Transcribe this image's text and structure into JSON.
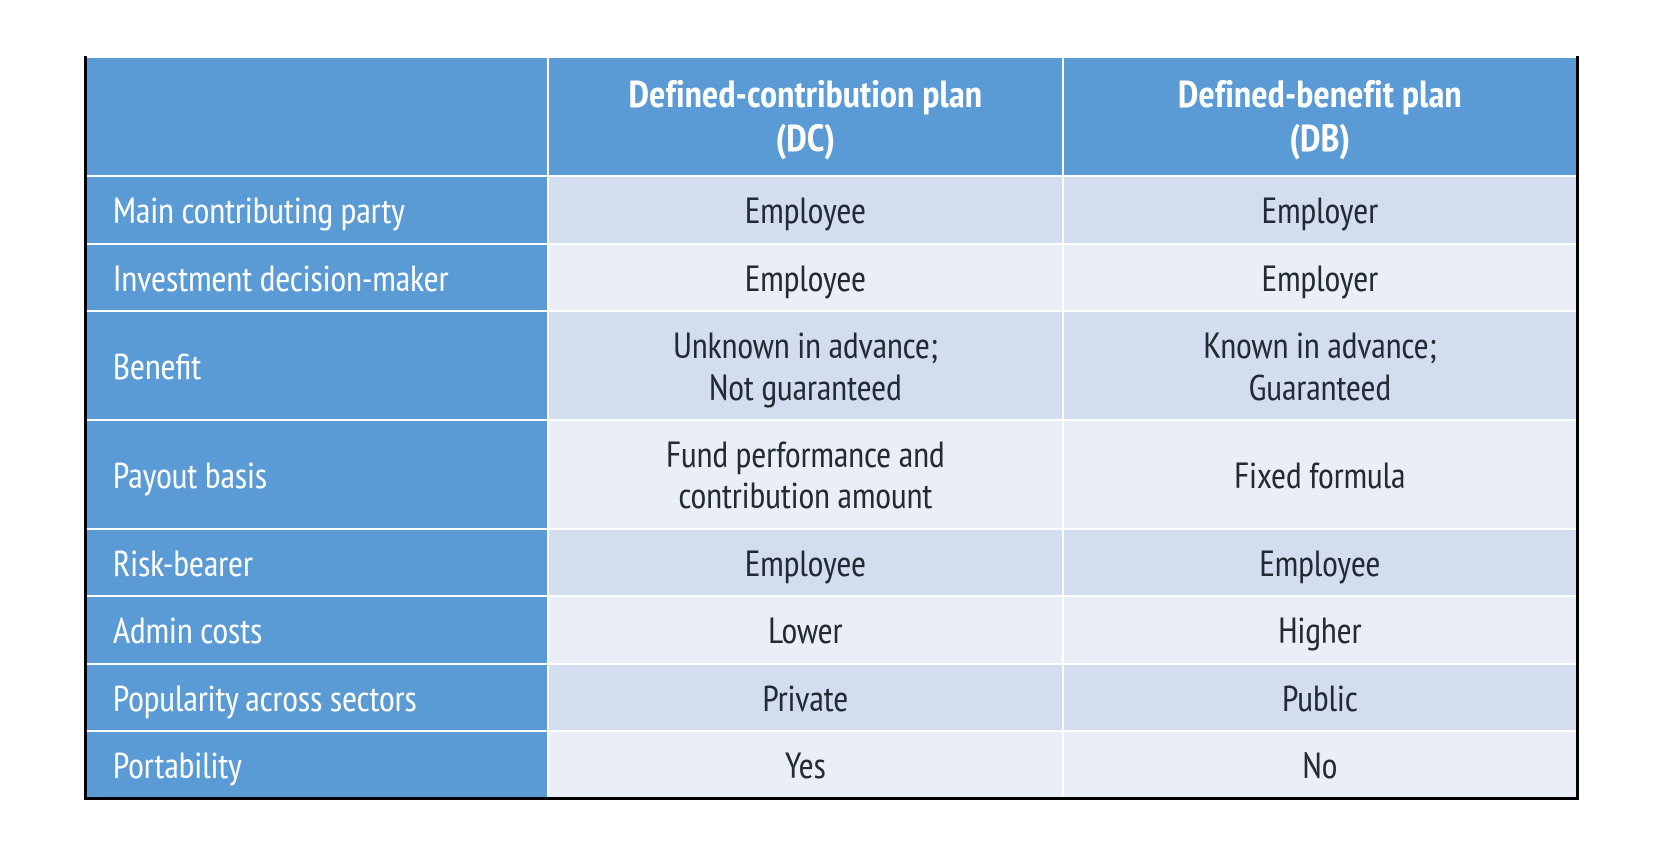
{
  "table": {
    "type": "table",
    "columns": [
      {
        "key": "label",
        "header": "",
        "align": "left"
      },
      {
        "key": "dc",
        "header": "Defined-contribution plan\n(DC)",
        "align": "center"
      },
      {
        "key": "db",
        "header": "Defined-benefit plan\n(DB)",
        "align": "center"
      }
    ],
    "rows": [
      {
        "label": "Main contributing party",
        "dc": "Employee",
        "db": "Employer"
      },
      {
        "label": "Investment decision-maker",
        "dc": "Employee",
        "db": "Employer"
      },
      {
        "label": "Benefit",
        "dc": "Unknown in advance;\nNot guaranteed",
        "db": "Known in advance;\nGuaranteed"
      },
      {
        "label": "Payout basis",
        "dc": "Fund performance and\ncontribution amount",
        "db": "Fixed formula"
      },
      {
        "label": "Risk-bearer",
        "dc": "Employee",
        "db": "Employee"
      },
      {
        "label": "Admin costs",
        "dc": "Lower",
        "db": "Higher"
      },
      {
        "label": "Popularity across sectors",
        "dc": "Private",
        "db": "Public"
      },
      {
        "label": "Portability",
        "dc": "Yes",
        "db": "No"
      }
    ],
    "style": {
      "header_bg": "#5b9bd5",
      "rowlabel_bg": "#5b9bd5",
      "cell_alt_colors": [
        "#d2deef",
        "#eaeff7"
      ],
      "inner_border_color": "#ffffff",
      "outer_border_color": "#000000",
      "header_text_color": "#ffffff",
      "rowlabel_text_color": "#ffffff",
      "cell_text_color": "#232a33",
      "header_fontsize": 38,
      "body_fontsize": 36,
      "header_fontweight": 700,
      "body_fontweight": 400,
      "column_widths_pct": [
        31,
        34.5,
        34.5
      ]
    }
  }
}
